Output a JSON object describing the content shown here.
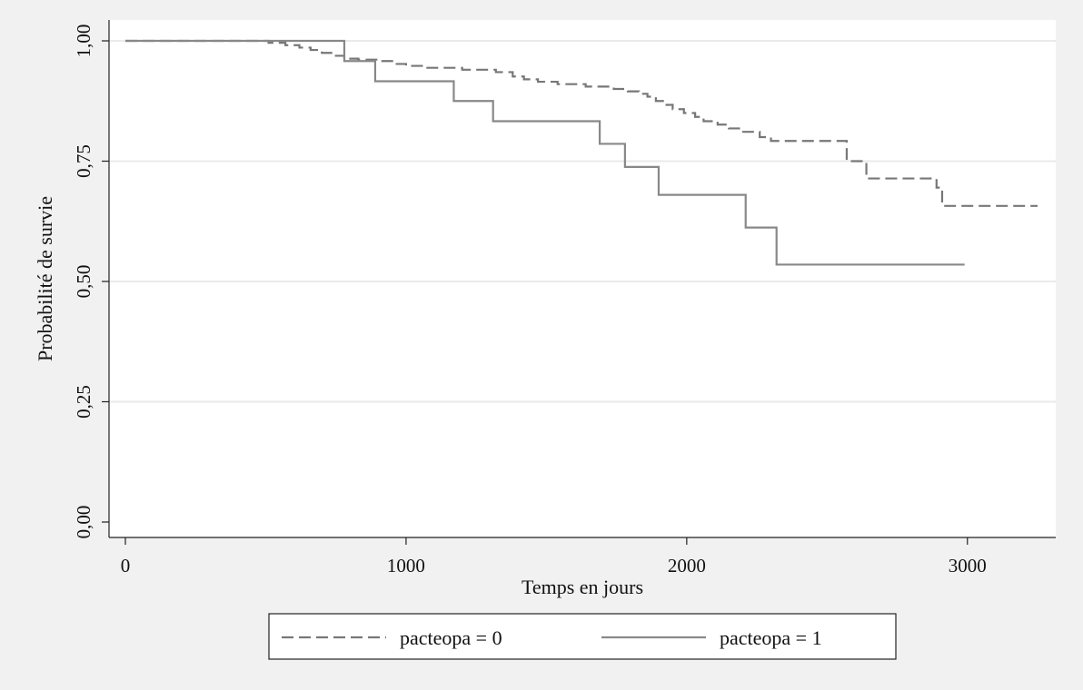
{
  "chart_data": {
    "type": "line",
    "step": true,
    "xlabel": "Temps en jours",
    "ylabel": "Probabilité de survie",
    "xlim": [
      0,
      3250
    ],
    "ylim": [
      0,
      1
    ],
    "xticks": [
      0,
      1000,
      2000,
      3000
    ],
    "xtick_labels": [
      "0",
      "1000",
      "2000",
      "3000"
    ],
    "yticks": [
      0,
      0.25,
      0.5,
      0.75,
      1
    ],
    "ytick_labels": [
      "0,00",
      "0,25",
      "0,50",
      "0,75",
      "1,00"
    ],
    "grid": "horizontal",
    "legend_position": "bottom",
    "series": [
      {
        "name": "pacteopa = 0",
        "style": "dashed",
        "color": "#777777",
        "points": [
          [
            0,
            1.0
          ],
          [
            510,
            0.996
          ],
          [
            570,
            0.991
          ],
          [
            620,
            0.986
          ],
          [
            660,
            0.981
          ],
          [
            700,
            0.975
          ],
          [
            740,
            0.969
          ],
          [
            780,
            0.963
          ],
          [
            830,
            0.961
          ],
          [
            900,
            0.958
          ],
          [
            960,
            0.952
          ],
          [
            1000,
            0.948
          ],
          [
            1060,
            0.944
          ],
          [
            1200,
            0.94
          ],
          [
            1320,
            0.935
          ],
          [
            1380,
            0.926
          ],
          [
            1420,
            0.92
          ],
          [
            1470,
            0.915
          ],
          [
            1540,
            0.91
          ],
          [
            1640,
            0.905
          ],
          [
            1740,
            0.9
          ],
          [
            1790,
            0.895
          ],
          [
            1830,
            0.89
          ],
          [
            1860,
            0.884
          ],
          [
            1890,
            0.875
          ],
          [
            1920,
            0.867
          ],
          [
            1950,
            0.858
          ],
          [
            1990,
            0.85
          ],
          [
            2030,
            0.842
          ],
          [
            2060,
            0.833
          ],
          [
            2110,
            0.826
          ],
          [
            2150,
            0.818
          ],
          [
            2190,
            0.811
          ],
          [
            2260,
            0.8
          ],
          [
            2300,
            0.792
          ],
          [
            2570,
            0.75
          ],
          [
            2640,
            0.714
          ],
          [
            2890,
            0.695
          ],
          [
            2910,
            0.657
          ],
          [
            3250,
            0.657
          ]
        ]
      },
      {
        "name": "pacteopa = 1",
        "style": "solid",
        "color": "#888888",
        "points": [
          [
            0,
            1.0
          ],
          [
            780,
            0.958
          ],
          [
            890,
            0.916
          ],
          [
            1170,
            0.875
          ],
          [
            1310,
            0.833
          ],
          [
            1690,
            0.786
          ],
          [
            1780,
            0.738
          ],
          [
            1900,
            0.68
          ],
          [
            2210,
            0.612
          ],
          [
            2320,
            0.535
          ],
          [
            2990,
            0.535
          ]
        ]
      }
    ]
  }
}
